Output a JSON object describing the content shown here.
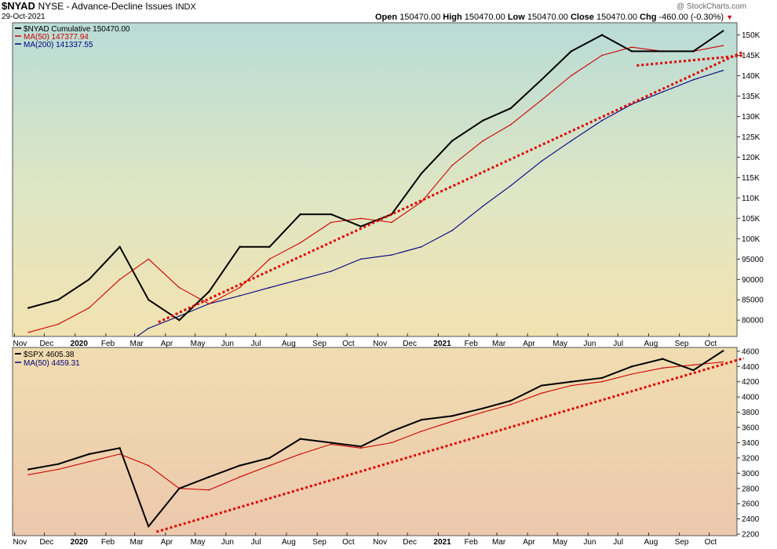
{
  "header": {
    "symbol": "$NYAD",
    "name": "NYSE - Advance-Decline Issues",
    "exchange": "INDX",
    "date": "29-Oct-2021",
    "ohlc": {
      "open_label": "Open",
      "open": "150470.00",
      "high_label": "High",
      "high": "150470.00",
      "low_label": "Low",
      "low": "150470.00",
      "close_label": "Close",
      "close": "150470.00",
      "chg_label": "Chg",
      "chg": "-460.00 (-0.30%)"
    },
    "watermark": "@ StockCharts.com"
  },
  "colors": {
    "price": "#000000",
    "ma50": "#cc0000",
    "ma200": "#000080",
    "trendline": "#dd0000",
    "down_arrow": "#cc0000"
  },
  "x_axis": {
    "labels": [
      {
        "text": "Nov"
      },
      {
        "text": "Dec"
      },
      {
        "text": "2020",
        "bold": true
      },
      {
        "text": "Feb"
      },
      {
        "text": "Mar"
      },
      {
        "text": "Apr"
      },
      {
        "text": "May"
      },
      {
        "text": "Jun"
      },
      {
        "text": "Jul"
      },
      {
        "text": "Aug"
      },
      {
        "text": "Sep"
      },
      {
        "text": "Oct"
      },
      {
        "text": "Nov"
      },
      {
        "text": "Dec"
      },
      {
        "text": "2021",
        "bold": true
      },
      {
        "text": "Feb"
      },
      {
        "text": "Mar"
      },
      {
        "text": "Apr"
      },
      {
        "text": "May"
      },
      {
        "text": "Jun"
      },
      {
        "text": "Jul"
      },
      {
        "text": "Aug"
      },
      {
        "text": "Sep"
      },
      {
        "text": "Oct"
      }
    ]
  },
  "chart_data": [
    {
      "type": "line",
      "title": "$NYAD Cumulative 150470.00",
      "grid": false,
      "legend_position": "top-left",
      "y_ticks": [
        "80000",
        "85000",
        "90000",
        "95000",
        "100K",
        "105K",
        "110K",
        "115K",
        "120K",
        "125K",
        "130K",
        "135K",
        "140K",
        "145K",
        "150K"
      ],
      "ylim": [
        76000,
        153000
      ],
      "x": [
        "2019-11",
        "2019-12",
        "2020-01",
        "2020-02",
        "2020-03",
        "2020-04",
        "2020-05",
        "2020-06",
        "2020-07",
        "2020-08",
        "2020-09",
        "2020-10",
        "2020-11",
        "2020-12",
        "2021-01",
        "2021-02",
        "2021-03",
        "2021-04",
        "2021-05",
        "2021-06",
        "2021-07",
        "2021-08",
        "2021-09",
        "2021-10"
      ],
      "series": [
        {
          "name": "$NYAD Cumulative 150470.00",
          "legend": "$NYAD Cumulative 150470.00",
          "color_key": "price",
          "values": [
            83000,
            85000,
            90000,
            98000,
            85000,
            80000,
            87000,
            98000,
            98000,
            106000,
            106000,
            103000,
            106000,
            116000,
            124000,
            129000,
            132000,
            139000,
            146000,
            150000,
            146000,
            146000,
            146000,
            151000
          ]
        },
        {
          "name": "MA(50)",
          "legend": "MA(50) 147377.94",
          "color_key": "ma50",
          "values": [
            77000,
            79000,
            83000,
            90000,
            95000,
            88000,
            84000,
            88000,
            95000,
            99000,
            104000,
            105000,
            104000,
            109000,
            118000,
            124000,
            128000,
            134000,
            140000,
            145000,
            147000,
            146000,
            146000,
            147400
          ]
        },
        {
          "name": "MA(200)",
          "legend": "MA(200) 141337.55",
          "color_key": "ma200",
          "values": [
            null,
            null,
            null,
            73000,
            78000,
            81000,
            84000,
            86000,
            88000,
            90000,
            92000,
            95000,
            96000,
            98000,
            102000,
            108000,
            113000,
            119000,
            124000,
            129000,
            133000,
            136000,
            139000,
            141300
          ]
        }
      ],
      "trendlines": [
        {
          "from": [
            "2020-03-25",
            79500
          ],
          "to": [
            "2021-11-05",
            146000
          ]
        },
        {
          "from": [
            "2021-07-20",
            142500
          ],
          "to": [
            "2021-11-05",
            145000
          ]
        }
      ]
    },
    {
      "type": "line",
      "title": "$SPX 4605.38",
      "grid": false,
      "legend_position": "top-left",
      "y_ticks": [
        "2200",
        "2400",
        "2600",
        "2800",
        "3000",
        "3200",
        "3400",
        "3600",
        "3800",
        "4000",
        "4200",
        "4400",
        "4600"
      ],
      "ylim": [
        2180,
        4650
      ],
      "x": [
        "2019-11",
        "2019-12",
        "2020-01",
        "2020-02",
        "2020-03",
        "2020-04",
        "2020-05",
        "2020-06",
        "2020-07",
        "2020-08",
        "2020-09",
        "2020-10",
        "2020-11",
        "2020-12",
        "2021-01",
        "2021-02",
        "2021-03",
        "2021-04",
        "2021-05",
        "2021-06",
        "2021-07",
        "2021-08",
        "2021-09",
        "2021-10"
      ],
      "series": [
        {
          "name": "$SPX 4605.38",
          "legend": "$SPX 4605.38",
          "color_key": "price",
          "values": [
            3050,
            3120,
            3250,
            3330,
            2300,
            2800,
            2950,
            3100,
            3200,
            3450,
            3400,
            3350,
            3550,
            3700,
            3750,
            3850,
            3950,
            4150,
            4200,
            4250,
            4400,
            4500,
            4350,
            4605
          ]
        },
        {
          "name": "MA(50)",
          "legend": "MA(50) 4459.31",
          "color_key": "ma50",
          "values": [
            2980,
            3050,
            3150,
            3250,
            3100,
            2800,
            2780,
            2950,
            3100,
            3250,
            3380,
            3330,
            3400,
            3550,
            3680,
            3800,
            3900,
            4050,
            4150,
            4200,
            4300,
            4380,
            4420,
            4459
          ]
        }
      ],
      "trendlines": [
        {
          "from": [
            "2020-03-23",
            2230
          ],
          "to": [
            "2021-11-05",
            4510
          ]
        }
      ]
    }
  ]
}
